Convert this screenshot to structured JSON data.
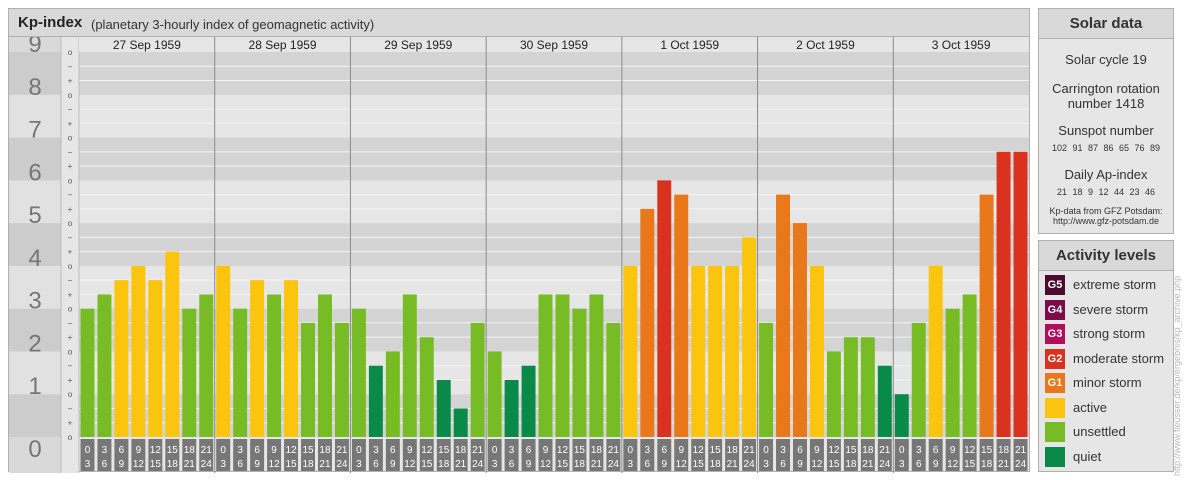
{
  "header": {
    "title": "Kp-index",
    "subtitle": "(planetary 3-hourly index of geomagnetic activity)"
  },
  "solar": {
    "title": "Solar data",
    "cycle": "Solar cycle 19",
    "carrington_line1": "Carrington rotation",
    "carrington_line2": "number 1418",
    "sunspot_title": "Sunspot number",
    "sunspot_values": "102 91 87 86 65 76 89",
    "ap_title": "Daily Ap-index",
    "ap_values": "21 18 9 12 44 23 46",
    "source_line1": "Kp-data from GFZ Potsdam:",
    "source_line2": "http://www.gfz-potsdam.de"
  },
  "activity": {
    "title": "Activity levels",
    "levels": [
      {
        "badge": "G5",
        "label": "extreme storm",
        "color": "#4d0a2e"
      },
      {
        "badge": "G4",
        "label": "severe storm",
        "color": "#7d0a4a"
      },
      {
        "badge": "G3",
        "label": "strong storm",
        "color": "#b20c5a"
      },
      {
        "badge": "G2",
        "label": "moderate storm",
        "color": "#d93320"
      },
      {
        "badge": "G1",
        "label": "minor storm",
        "color": "#e8781a"
      },
      {
        "badge": "",
        "label": "active",
        "color": "#fac40f"
      },
      {
        "badge": "",
        "label": "unsettled",
        "color": "#78bc25"
      },
      {
        "badge": "",
        "label": "quiet",
        "color": "#0a8a48"
      }
    ]
  },
  "credit": "http://www.fieusser.de/kp/ergebnis/kp_archive.php",
  "chart_data": {
    "type": "bar",
    "title": "Kp-index",
    "subtitle": "(planetary 3-hourly index of geomagnetic activity)",
    "ylim": [
      0,
      9
    ],
    "y_ticks": [
      "0",
      "1",
      "2",
      "3",
      "4",
      "5",
      "6",
      "7",
      "8",
      "9"
    ],
    "y_minor_labels": [
      "o",
      "+",
      "−"
    ],
    "days": [
      "27 Sep 1959",
      "28 Sep 1959",
      "29 Sep 1959",
      "30 Sep 1959",
      "1 Oct 1959",
      "2 Oct 1959",
      "3 Oct 1959"
    ],
    "interval_top": [
      "0",
      "3",
      "6",
      "9",
      "12",
      "15",
      "18",
      "21"
    ],
    "interval_bottom": [
      "3",
      "6",
      "9",
      "12",
      "15",
      "18",
      "21",
      "24"
    ],
    "values": [
      3.0,
      3.333,
      3.667,
      4.0,
      3.667,
      4.333,
      3.0,
      3.333,
      4.0,
      3.0,
      3.667,
      3.333,
      3.667,
      2.667,
      3.333,
      2.667,
      3.0,
      1.667,
      2.0,
      3.333,
      2.333,
      1.333,
      0.667,
      2.667,
      2.0,
      1.333,
      1.667,
      3.333,
      3.333,
      3.0,
      3.333,
      2.667,
      4.0,
      5.333,
      6.0,
      5.667,
      4.0,
      4.0,
      4.0,
      4.667,
      2.667,
      5.667,
      5.0,
      4.0,
      2.0,
      2.333,
      2.333,
      1.667,
      1.0,
      2.667,
      4.0,
      3.0,
      3.333,
      5.667,
      6.667,
      6.667
    ],
    "color_scale": {
      "quiet": "#0a8a48",
      "unsettled": "#78bc25",
      "active": "#fac40f",
      "G1": "#e8781a",
      "G2": "#d93320",
      "G3": "#b20c5a",
      "G4": "#7d0a4a",
      "G5": "#4d0a2e"
    },
    "grid": true,
    "legend": "right"
  }
}
